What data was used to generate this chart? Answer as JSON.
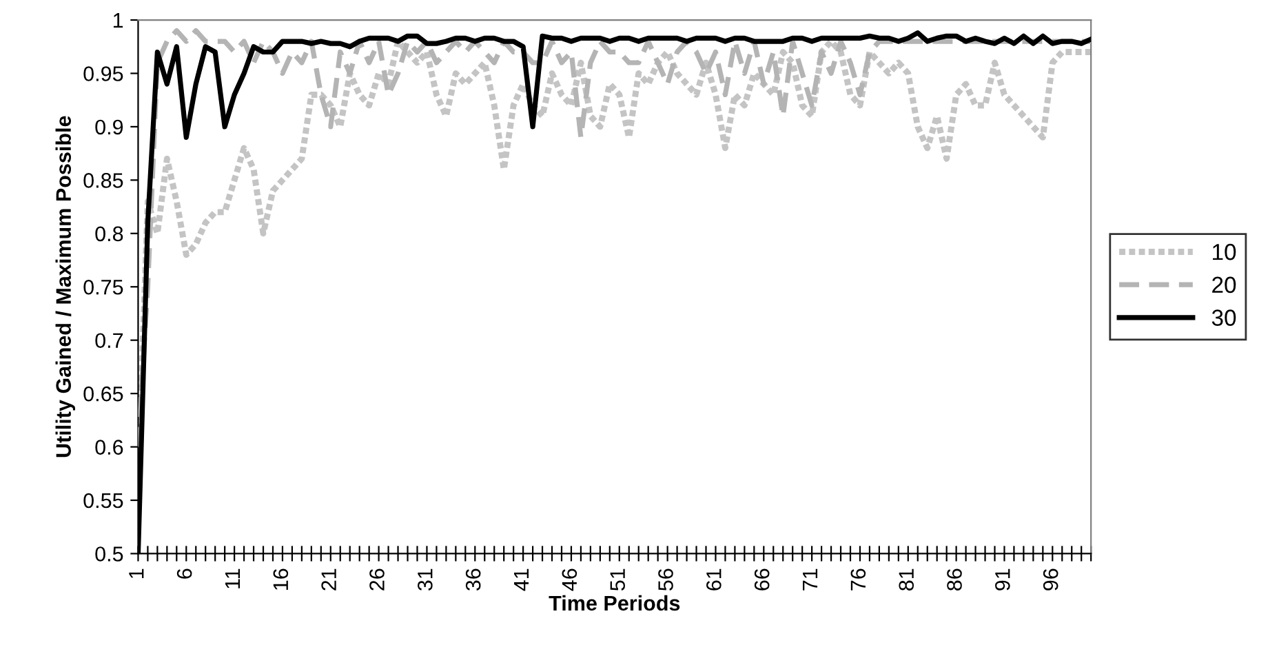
{
  "chart_data": {
    "type": "line",
    "xlabel": "Time Periods",
    "ylabel": "Utility Gained / Maximum Possible",
    "categories": [
      "1",
      null,
      null,
      null,
      null,
      "6",
      null,
      null,
      null,
      null,
      "11",
      null,
      null,
      null,
      null,
      "16",
      null,
      null,
      null,
      null,
      "21",
      null,
      null,
      null,
      null,
      "26",
      null,
      null,
      null,
      null,
      "31",
      null,
      null,
      null,
      null,
      "36",
      null,
      null,
      null,
      null,
      "41",
      null,
      null,
      null,
      null,
      "46",
      null,
      null,
      null,
      null,
      "51",
      null,
      null,
      null,
      null,
      "56",
      null,
      null,
      null,
      null,
      "61",
      null,
      null,
      null,
      null,
      "66",
      null,
      null,
      null,
      null,
      "71",
      null,
      null,
      null,
      null,
      "76",
      null,
      null,
      null,
      null,
      "81",
      null,
      null,
      null,
      null,
      "86",
      null,
      null,
      null,
      null,
      "91",
      null,
      null,
      null,
      null,
      "96",
      null,
      null,
      null,
      null
    ],
    "ylim": [
      0.5,
      1
    ],
    "yticks": [
      0.5,
      0.55,
      0.6,
      0.65,
      0.7,
      0.75,
      0.8,
      0.85,
      0.9,
      0.95,
      1
    ],
    "grid": false,
    "legend": "right",
    "marker": "none",
    "series": [
      {
        "name": "10",
        "color": "#c4c4c4",
        "line_style": "dotted",
        "values": [
          0.57,
          0.83,
          0.8,
          0.87,
          0.83,
          0.78,
          0.79,
          0.81,
          0.82,
          0.82,
          0.85,
          0.88,
          0.86,
          0.8,
          0.84,
          0.85,
          0.86,
          0.87,
          0.93,
          0.93,
          0.92,
          0.9,
          0.95,
          0.93,
          0.92,
          0.95,
          0.94,
          0.98,
          0.97,
          0.96,
          0.97,
          0.93,
          0.91,
          0.95,
          0.94,
          0.95,
          0.96,
          0.92,
          0.86,
          0.92,
          0.94,
          0.92,
          0.91,
          0.95,
          0.93,
          0.92,
          0.96,
          0.91,
          0.9,
          0.94,
          0.93,
          0.89,
          0.95,
          0.94,
          0.96,
          0.97,
          0.95,
          0.94,
          0.93,
          0.96,
          0.93,
          0.88,
          0.93,
          0.92,
          0.95,
          0.94,
          0.93,
          0.97,
          0.96,
          0.92,
          0.91,
          0.97,
          0.98,
          0.97,
          0.93,
          0.92,
          0.97,
          0.96,
          0.95,
          0.96,
          0.95,
          0.9,
          0.88,
          0.91,
          0.87,
          0.93,
          0.94,
          0.92,
          0.92,
          0.96,
          0.93,
          0.92,
          0.91,
          0.9,
          0.89,
          0.96,
          0.97,
          0.97,
          0.97,
          0.97
        ]
      },
      {
        "name": "20",
        "color": "#b4b4b4",
        "line_style": "dashed",
        "values": [
          0.6,
          0.75,
          0.96,
          0.98,
          0.99,
          0.98,
          0.99,
          0.98,
          0.98,
          0.98,
          0.97,
          0.98,
          0.96,
          0.98,
          0.97,
          0.95,
          0.97,
          0.96,
          0.98,
          0.93,
          0.9,
          0.97,
          0.95,
          0.98,
          0.96,
          0.98,
          0.93,
          0.95,
          0.98,
          0.97,
          0.98,
          0.96,
          0.97,
          0.98,
          0.97,
          0.98,
          0.97,
          0.96,
          0.98,
          0.97,
          0.97,
          0.96,
          0.96,
          0.98,
          0.96,
          0.97,
          0.89,
          0.96,
          0.98,
          0.97,
          0.97,
          0.96,
          0.96,
          0.98,
          0.96,
          0.94,
          0.97,
          0.98,
          0.97,
          0.95,
          0.97,
          0.93,
          0.98,
          0.95,
          0.98,
          0.94,
          0.97,
          0.91,
          0.98,
          0.95,
          0.92,
          0.97,
          0.95,
          0.98,
          0.96,
          0.93,
          0.97,
          0.98,
          0.98,
          0.98,
          0.98,
          0.98,
          0.98,
          0.98,
          0.98,
          0.98,
          0.98,
          0.98,
          0.98,
          0.98,
          0.98,
          0.98,
          0.98,
          0.98,
          0.98,
          0.98,
          0.98,
          0.98,
          0.98,
          0.98
        ]
      },
      {
        "name": "30",
        "color": "#000000",
        "line_style": "solid",
        "values": [
          0.5,
          0.81,
          0.97,
          0.94,
          0.975,
          0.89,
          0.94,
          0.975,
          0.97,
          0.9,
          0.93,
          0.95,
          0.975,
          0.97,
          0.97,
          0.98,
          0.98,
          0.98,
          0.978,
          0.98,
          0.978,
          0.978,
          0.975,
          0.98,
          0.983,
          0.983,
          0.983,
          0.98,
          0.985,
          0.985,
          0.978,
          0.978,
          0.98,
          0.983,
          0.983,
          0.98,
          0.983,
          0.983,
          0.98,
          0.98,
          0.975,
          0.9,
          0.985,
          0.983,
          0.983,
          0.98,
          0.983,
          0.983,
          0.983,
          0.98,
          0.983,
          0.983,
          0.98,
          0.983,
          0.983,
          0.983,
          0.983,
          0.98,
          0.983,
          0.983,
          0.983,
          0.98,
          0.983,
          0.983,
          0.98,
          0.98,
          0.98,
          0.98,
          0.983,
          0.983,
          0.98,
          0.983,
          0.983,
          0.983,
          0.983,
          0.983,
          0.985,
          0.983,
          0.983,
          0.98,
          0.983,
          0.988,
          0.98,
          0.983,
          0.985,
          0.985,
          0.98,
          0.983,
          0.98,
          0.978,
          0.983,
          0.978,
          0.985,
          0.978,
          0.985,
          0.978,
          0.98,
          0.98,
          0.978,
          0.982
        ]
      }
    ]
  }
}
